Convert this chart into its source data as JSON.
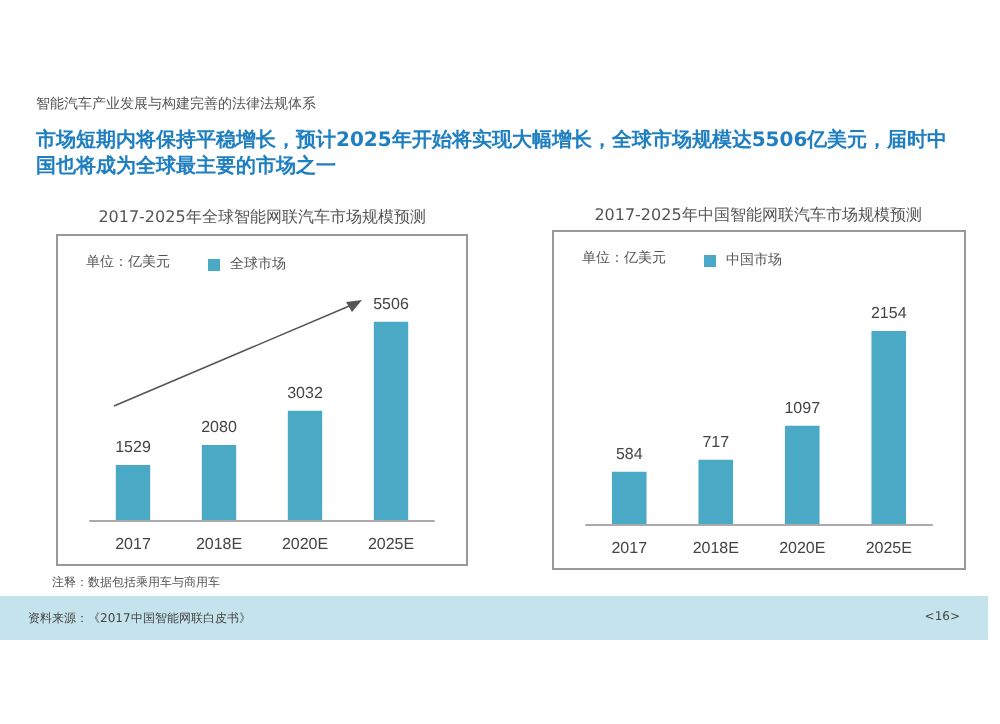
{
  "chart_data": [
    {
      "type": "bar",
      "title": "2017-2025年全球智能网联汽车市场规模预测",
      "ylabel": "单位：亿美元",
      "categories": [
        "2017",
        "2018E",
        "2020E",
        "2025E"
      ],
      "series": [
        {
          "name": "全球市场",
          "color": "#4aaac5",
          "values": [
            1529,
            2080,
            3032,
            5506
          ]
        }
      ],
      "tick_labels": "x",
      "data_labels": true,
      "legend": "top",
      "annotations": [
        "智能汽车产业发展与构建完善的法律法规体系",
        "市场短期内将保持平稳增长，预计2025年开始将实现大幅增长，全球市场规模达5506亿美元，届时中国也将成为全球最主要的市场之一"
      ]
    },
    {
      "type": "bar",
      "title": "2017-2025年中国智能网联汽车市场规模预测",
      "ylabel": "单位：亿美元",
      "categories": [
        "2017",
        "2018E",
        "2020E",
        "2025E"
      ],
      "series": [
        {
          "name": "中国市场",
          "color": "#4aaac5",
          "values": [
            584,
            717,
            1097,
            2154
          ]
        }
      ],
      "tick_labels": "x",
      "data_labels": true,
      "legend": "top",
      "annotations": [
        "注释：数据包括乘用车与商用车",
        "资料来源：《2017中国智能网联白皮书》",
        "<16>"
      ]
    }
  ]
}
